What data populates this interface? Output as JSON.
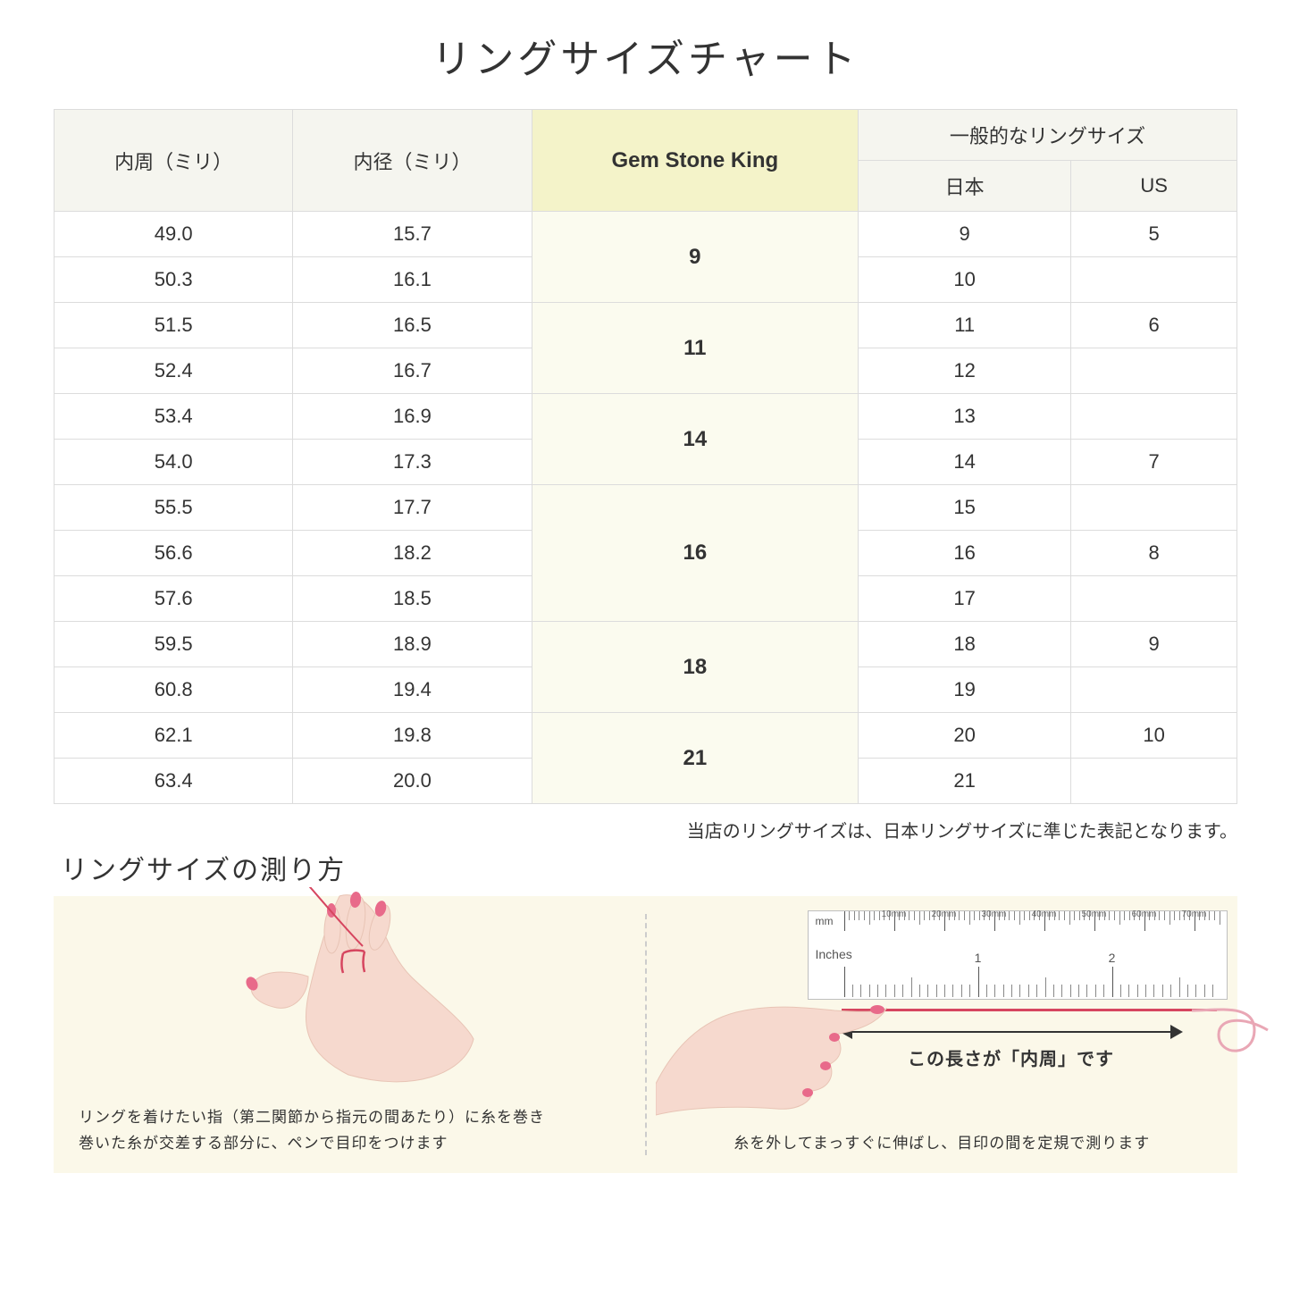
{
  "title": "リングサイズチャート",
  "table": {
    "headers": {
      "circumference": "内周（ミリ）",
      "diameter": "内径（ミリ）",
      "gsk": "Gem Stone King",
      "general_group": "一般的なリングサイズ",
      "japan": "日本",
      "us": "US"
    },
    "groups": [
      {
        "gsk": "9",
        "rows": [
          {
            "c": "49.0",
            "d": "15.7",
            "jp": "9",
            "us": "5"
          },
          {
            "c": "50.3",
            "d": "16.1",
            "jp": "10",
            "us": ""
          }
        ]
      },
      {
        "gsk": "11",
        "rows": [
          {
            "c": "51.5",
            "d": "16.5",
            "jp": "11",
            "us": "6"
          },
          {
            "c": "52.4",
            "d": "16.7",
            "jp": "12",
            "us": ""
          }
        ]
      },
      {
        "gsk": "14",
        "rows": [
          {
            "c": "53.4",
            "d": "16.9",
            "jp": "13",
            "us": ""
          },
          {
            "c": "54.0",
            "d": "17.3",
            "jp": "14",
            "us": "7"
          }
        ]
      },
      {
        "gsk": "16",
        "rows": [
          {
            "c": "55.5",
            "d": "17.7",
            "jp": "15",
            "us": ""
          },
          {
            "c": "56.6",
            "d": "18.2",
            "jp": "16",
            "us": "8"
          },
          {
            "c": "57.6",
            "d": "18.5",
            "jp": "17",
            "us": ""
          }
        ]
      },
      {
        "gsk": "18",
        "rows": [
          {
            "c": "59.5",
            "d": "18.9",
            "jp": "18",
            "us": "9"
          },
          {
            "c": "60.8",
            "d": "19.4",
            "jp": "19",
            "us": ""
          }
        ]
      },
      {
        "gsk": "21",
        "rows": [
          {
            "c": "62.1",
            "d": "19.8",
            "jp": "20",
            "us": "10"
          },
          {
            "c": "63.4",
            "d": "20.0",
            "jp": "21",
            "us": ""
          }
        ]
      }
    ],
    "colors": {
      "header_bg": "#f5f5ef",
      "gsk_header_bg": "#f4f3c9",
      "gsk_cell_bg": "#fbfbef",
      "border": "#dcdcdc"
    }
  },
  "note": "当店のリングサイズは、日本リングサイズに準じた表記となります。",
  "howto": {
    "title": "リングサイズの測り方",
    "panel_bg": "#fbf8e9",
    "left_caption_line1": "リングを着けたい指（第二関節から指元の間あたり）に糸を巻き",
    "left_caption_line2": "巻いた糸が交差する部分に、ペンで目印をつけます",
    "right_caption": "糸を外してまっすぐに伸ばし、目印の間を定規で測ります",
    "ruler": {
      "mm_label": "mm",
      "inches_label": "Inches",
      "mm_major_labels": [
        "10mm",
        "20mm",
        "30mm",
        "40mm",
        "50mm",
        "60mm",
        "70mm"
      ],
      "inch_labels": [
        "1",
        "2"
      ],
      "tick_color": "#888888",
      "border_color": "#bfbfbf"
    },
    "arrow_label": "この長さが「内周」です",
    "thread_color": "#d6455f",
    "hand_skin": "#f6d9ce",
    "nail_color": "#e86a8a"
  }
}
